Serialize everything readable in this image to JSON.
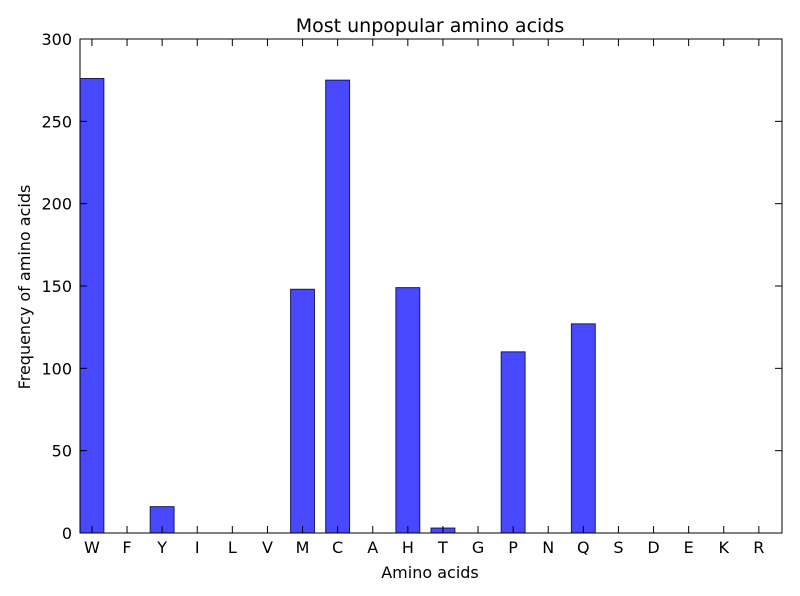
{
  "chart_data": {
    "type": "bar",
    "title": "Most unpopular amino acids",
    "xlabel": "Amino acids",
    "ylabel": "Frequency of amino acids",
    "categories": [
      "W",
      "F",
      "Y",
      "I",
      "L",
      "V",
      "M",
      "C",
      "A",
      "H",
      "T",
      "G",
      "P",
      "N",
      "Q",
      "S",
      "D",
      "E",
      "K",
      "R"
    ],
    "values": [
      276,
      0,
      16,
      0,
      0,
      0,
      148,
      275,
      0,
      149,
      3,
      0,
      110,
      0,
      127,
      0,
      0,
      0,
      0,
      0
    ],
    "ylim": [
      0,
      300
    ],
    "yticks": [
      0,
      50,
      100,
      150,
      200,
      250,
      300
    ],
    "grid": false,
    "legend": "none",
    "bar_color": "#4848ff"
  }
}
